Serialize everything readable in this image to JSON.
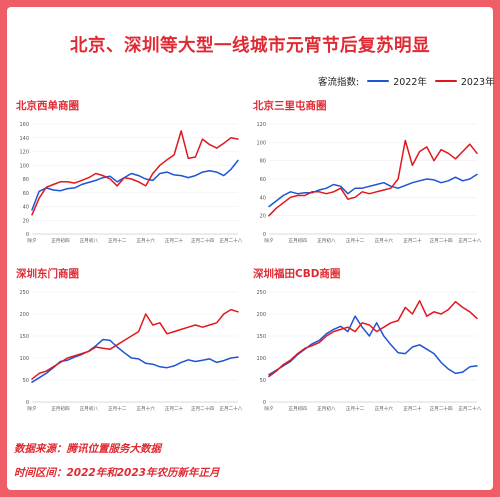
{
  "title": "北京、深圳等大型一线城市元宵节后复苏明显",
  "legend": {
    "label": "客流指数:",
    "items": [
      {
        "name": "2022年",
        "color": "#1f55d2"
      },
      {
        "name": "2023年",
        "color": "#e0181e"
      }
    ]
  },
  "footer": {
    "source": "数据来源：腾讯位置服务大数据",
    "period": "时间区间：2022年和2023年农历新年正月"
  },
  "chart_data": [
    {
      "type": "line",
      "title": "北京西单商圈",
      "categories": [
        "除夕",
        "正月初四",
        "正月初八",
        "正月十二",
        "正月十六",
        "正月二十",
        "正月二十四",
        "正月二十八"
      ],
      "ylim": [
        0,
        160
      ],
      "yticks": [
        0,
        20,
        40,
        60,
        80,
        100,
        120,
        140,
        160
      ],
      "xlim": [
        0,
        29
      ],
      "series": [
        {
          "name": "2022年",
          "color": "#1f55d2",
          "x": [
            0,
            1,
            2,
            3,
            4,
            5,
            6,
            7,
            8,
            9,
            10,
            11,
            12,
            13,
            14,
            15,
            16,
            17,
            18,
            19,
            20,
            21,
            22,
            23,
            24,
            25,
            26,
            27,
            28,
            29
          ],
          "values": [
            35,
            62,
            67,
            64,
            63,
            66,
            67,
            72,
            75,
            78,
            82,
            84,
            76,
            82,
            88,
            85,
            80,
            78,
            88,
            90,
            86,
            85,
            82,
            85,
            90,
            92,
            90,
            85,
            94,
            107
          ]
        },
        {
          "name": "2023年",
          "color": "#e0181e",
          "x": [
            0,
            1,
            2,
            3,
            4,
            5,
            6,
            7,
            8,
            9,
            10,
            11,
            12,
            13,
            14,
            15,
            16,
            17,
            18,
            19,
            20,
            21,
            22,
            23,
            24,
            25,
            26,
            27,
            28,
            29
          ],
          "values": [
            28,
            52,
            68,
            72,
            76,
            76,
            74,
            78,
            82,
            88,
            85,
            80,
            70,
            82,
            80,
            76,
            70,
            88,
            100,
            108,
            115,
            150,
            110,
            112,
            138,
            130,
            125,
            132,
            140,
            138
          ]
        }
      ]
    },
    {
      "type": "line",
      "title": "北京三里屯商圈",
      "categories": [
        "除夕",
        "正月初四",
        "正月初八",
        "正月十二",
        "正月十六",
        "正月二十",
        "正月二十四",
        "正月二十八"
      ],
      "ylim": [
        0,
        120
      ],
      "yticks": [
        0,
        20,
        40,
        60,
        80,
        100,
        120
      ],
      "xlim": [
        0,
        29
      ],
      "series": [
        {
          "name": "2022年",
          "color": "#1f55d2",
          "x": [
            0,
            1,
            2,
            3,
            4,
            5,
            6,
            7,
            8,
            9,
            10,
            11,
            12,
            13,
            14,
            15,
            16,
            17,
            18,
            19,
            20,
            21,
            22,
            23,
            24,
            25,
            26,
            27,
            28,
            29
          ],
          "values": [
            30,
            36,
            42,
            46,
            44,
            45,
            45,
            48,
            50,
            54,
            52,
            44,
            50,
            50,
            52,
            54,
            56,
            52,
            50,
            53,
            56,
            58,
            60,
            59,
            56,
            58,
            62,
            58,
            60,
            65
          ]
        },
        {
          "name": "2023年",
          "color": "#e0181e",
          "x": [
            0,
            1,
            2,
            3,
            4,
            5,
            6,
            7,
            8,
            9,
            10,
            11,
            12,
            13,
            14,
            15,
            16,
            17,
            18,
            19,
            20,
            21,
            22,
            23,
            24,
            25,
            26,
            27,
            28,
            29
          ],
          "values": [
            20,
            28,
            34,
            40,
            42,
            42,
            46,
            46,
            44,
            46,
            50,
            38,
            40,
            46,
            44,
            46,
            48,
            50,
            60,
            102,
            75,
            90,
            95,
            80,
            92,
            88,
            82,
            90,
            98,
            88
          ]
        }
      ]
    },
    {
      "type": "line",
      "title": "深圳东门商圈",
      "categories": [
        "除夕",
        "正月初四",
        "正月初八",
        "正月十二",
        "正月十六",
        "正月二十",
        "正月二十四",
        "正月二十八"
      ],
      "ylim": [
        0,
        250
      ],
      "yticks": [
        0,
        50,
        100,
        150,
        200,
        250
      ],
      "xlim": [
        0,
        29
      ],
      "series": [
        {
          "name": "2022年",
          "color": "#1f55d2",
          "x": [
            0,
            1,
            2,
            3,
            4,
            5,
            6,
            7,
            8,
            9,
            10,
            11,
            12,
            13,
            14,
            15,
            16,
            17,
            18,
            19,
            20,
            21,
            22,
            23,
            24,
            25,
            26,
            27,
            28,
            29
          ],
          "values": [
            45,
            55,
            65,
            78,
            92,
            95,
            102,
            108,
            116,
            128,
            142,
            140,
            125,
            112,
            100,
            98,
            88,
            86,
            80,
            78,
            82,
            90,
            96,
            92,
            95,
            98,
            90,
            94,
            100,
            102
          ]
        },
        {
          "name": "2023年",
          "color": "#e0181e",
          "x": [
            0,
            1,
            2,
            3,
            4,
            5,
            6,
            7,
            8,
            9,
            10,
            11,
            12,
            13,
            14,
            15,
            16,
            17,
            18,
            19,
            20,
            21,
            22,
            23,
            24,
            25,
            26,
            27,
            28,
            29
          ],
          "values": [
            52,
            65,
            70,
            80,
            90,
            100,
            105,
            110,
            115,
            125,
            122,
            120,
            130,
            140,
            150,
            160,
            200,
            175,
            180,
            155,
            160,
            165,
            170,
            175,
            170,
            175,
            180,
            200,
            210,
            205
          ]
        }
      ]
    },
    {
      "type": "line",
      "title": "深圳福田CBD商圈",
      "categories": [
        "除夕",
        "正月初四",
        "正月初八",
        "正月十二",
        "正月十六",
        "正月二十",
        "正月二十四",
        "正月二十八"
      ],
      "ylim": [
        0,
        250
      ],
      "yticks": [
        0,
        50,
        100,
        150,
        200,
        250
      ],
      "xlim": [
        0,
        29
      ],
      "series": [
        {
          "name": "2022年",
          "color": "#1f55d2",
          "x": [
            0,
            1,
            2,
            3,
            4,
            5,
            6,
            7,
            8,
            9,
            10,
            11,
            12,
            13,
            14,
            15,
            16,
            17,
            18,
            19,
            20,
            21,
            22,
            23,
            24,
            25,
            26,
            27,
            28,
            29
          ],
          "values": [
            62,
            72,
            82,
            92,
            108,
            120,
            132,
            140,
            155,
            165,
            172,
            160,
            195,
            170,
            150,
            180,
            150,
            130,
            112,
            110,
            125,
            130,
            120,
            110,
            90,
            75,
            65,
            68,
            80,
            82
          ]
        },
        {
          "name": "2023年",
          "color": "#e0181e",
          "x": [
            0,
            1,
            2,
            3,
            4,
            5,
            6,
            7,
            8,
            9,
            10,
            11,
            12,
            13,
            14,
            15,
            16,
            17,
            18,
            19,
            20,
            21,
            22,
            23,
            24,
            25,
            26,
            27,
            28,
            29
          ],
          "values": [
            58,
            70,
            85,
            95,
            110,
            122,
            128,
            135,
            150,
            160,
            165,
            170,
            160,
            180,
            175,
            160,
            170,
            180,
            185,
            215,
            200,
            230,
            195,
            205,
            200,
            210,
            228,
            215,
            205,
            190
          ]
        }
      ]
    }
  ]
}
